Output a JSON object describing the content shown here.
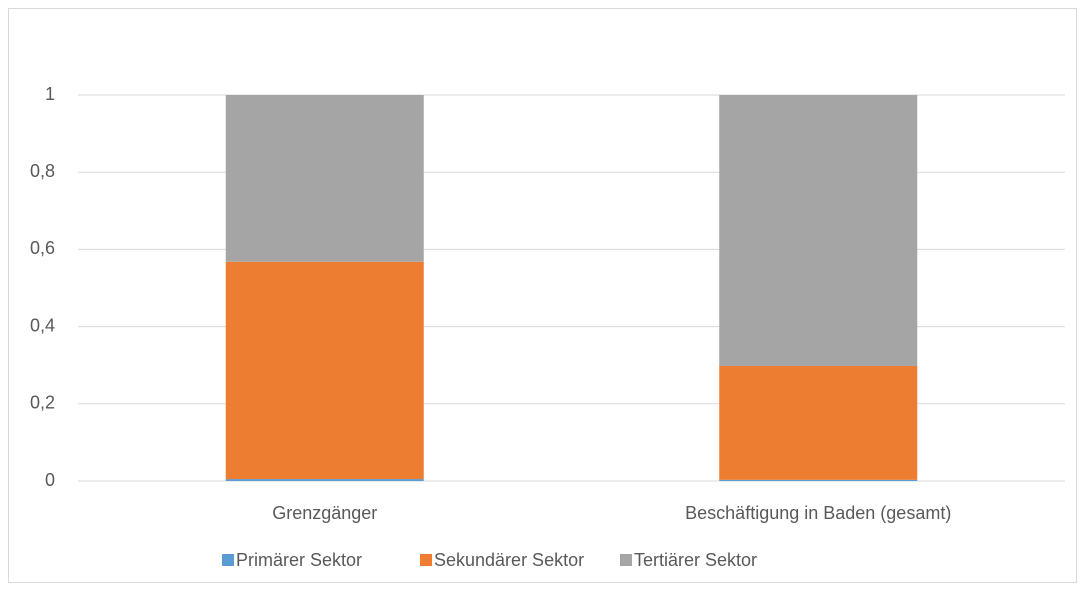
{
  "chart_data": {
    "type": "stacked_bar",
    "categories": [
      "Grenzgänger",
      "Beschäftigung in Baden (gesamt)"
    ],
    "series": [
      {
        "name": "Primärer Sektor",
        "color": "#5b9bd5",
        "values": [
          0.005,
          0.003
        ]
      },
      {
        "name": "Sekundärer Sektor",
        "color": "#ed7d31",
        "values": [
          0.563,
          0.295
        ]
      },
      {
        "name": "Tertiärer Sektor",
        "color": "#a5a5a5",
        "values": [
          0.432,
          0.702
        ]
      }
    ],
    "ylim": [
      0,
      1
    ],
    "yticks": [
      0,
      {
        "value": 0.2,
        "label": "0,2"
      },
      {
        "value": 0.4,
        "label": "0,4"
      },
      {
        "value": 0.6,
        "label": "0,6"
      },
      {
        "value": 0.8,
        "label": "0,8"
      },
      1
    ],
    "grid": true,
    "legend": "bottom"
  }
}
